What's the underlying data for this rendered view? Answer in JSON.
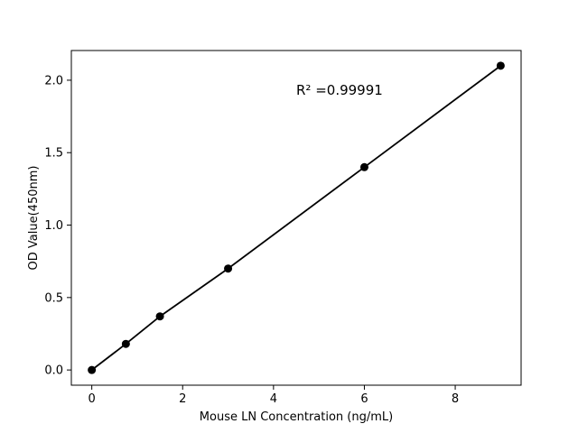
{
  "figure": {
    "background": "#ffffff"
  },
  "chart_data": {
    "type": "scatter",
    "subtype": "scatter-with-fit-line",
    "title": "",
    "xlabel": "Mouse LN Concentration (ng/mL)",
    "ylabel": "OD Value(450nm)",
    "series": [
      {
        "name": "standard-curve",
        "x": [
          0,
          0.75,
          1.5,
          3,
          6,
          9
        ],
        "y": [
          0.0,
          0.18,
          0.37,
          0.7,
          1.4,
          2.1
        ],
        "color": "#000000",
        "marker": "filled-circle",
        "marker_radius": 4.5,
        "line_style": "solid",
        "line_width": 1.8
      }
    ],
    "annotation": {
      "text": "R² =0.99991",
      "x": 4.5,
      "y": 1.9
    },
    "x_ticks": {
      "values": [
        0,
        2,
        4,
        6,
        8
      ],
      "labels": [
        "0",
        "2",
        "4",
        "6",
        "8"
      ]
    },
    "y_ticks": {
      "values": [
        0.0,
        0.5,
        1.0,
        1.5,
        2.0
      ],
      "labels": [
        "0.0",
        "0.5",
        "1.0",
        "1.5",
        "2.0"
      ]
    },
    "xlim": [
      -0.45,
      9.45
    ],
    "ylim": [
      -0.105,
      2.205
    ],
    "grid": false,
    "legend": "none",
    "axis_color": "#000000",
    "text_color": "#000000"
  }
}
